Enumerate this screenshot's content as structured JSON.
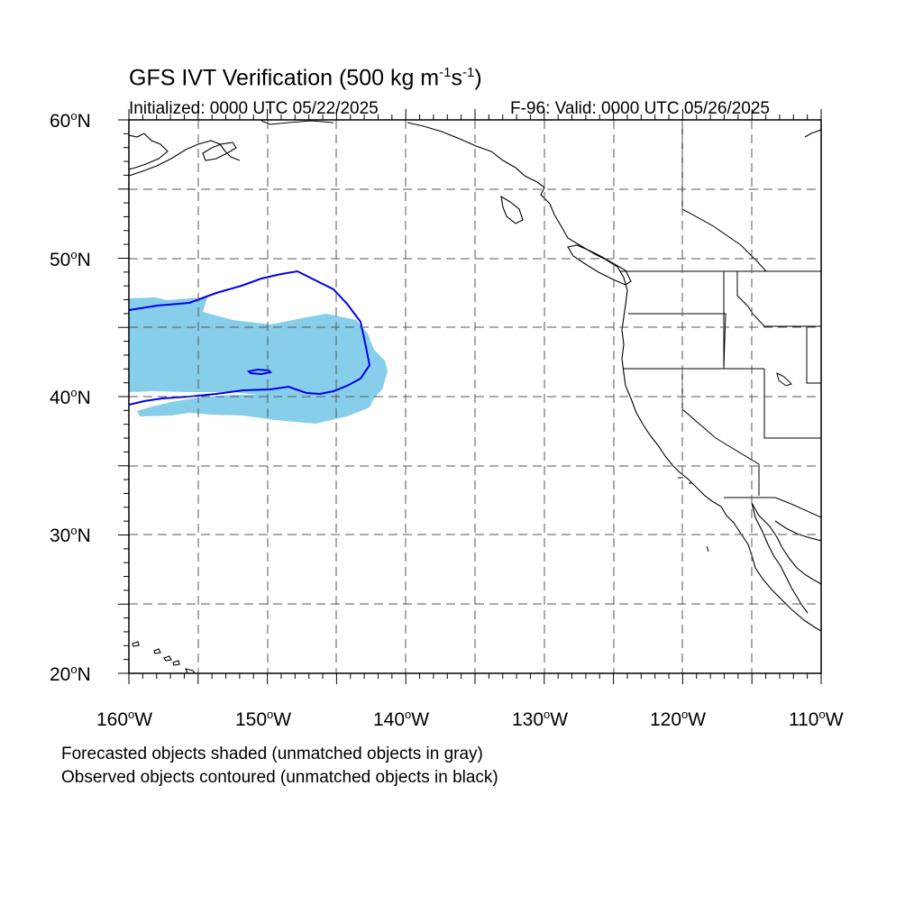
{
  "title": {
    "main": "GFS IVT Verification (500 kg m",
    "exp1": "-1",
    "mid": "s",
    "exp2": "-1",
    "end": ")"
  },
  "initialized": "Initialized: 0000 UTC 05/22/2025",
  "valid": "F-96: Valid: 0000 UTC 05/26/2025",
  "lat_labels": [
    {
      "value": "60",
      "deg": "o",
      "hemi": "N"
    },
    {
      "value": "50",
      "deg": "o",
      "hemi": "N"
    },
    {
      "value": "40",
      "deg": "o",
      "hemi": "N"
    },
    {
      "value": "30",
      "deg": "o",
      "hemi": "N"
    },
    {
      "value": "20",
      "deg": "o",
      "hemi": "N"
    }
  ],
  "lon_labels": [
    {
      "value": "160",
      "deg": "o",
      "hemi": "W"
    },
    {
      "value": "150",
      "deg": "o",
      "hemi": "W"
    },
    {
      "value": "140",
      "deg": "o",
      "hemi": "W"
    },
    {
      "value": "130",
      "deg": "o",
      "hemi": "W"
    },
    {
      "value": "120",
      "deg": "o",
      "hemi": "W"
    },
    {
      "value": "110",
      "deg": "o",
      "hemi": "W"
    }
  ],
  "notes": {
    "forecast": "Forecasted objects shaded (unmatched objects in gray)",
    "observed": "Observed objects contoured (unmatched objects in black)"
  },
  "map": {
    "lon_range": [
      -160,
      -110
    ],
    "lat_range": [
      20,
      60
    ],
    "gridline_style": "dashed",
    "forecast_object_color": "#87ceeb",
    "observed_contour_color": "#0000ee",
    "coastline_color": "#000000"
  }
}
